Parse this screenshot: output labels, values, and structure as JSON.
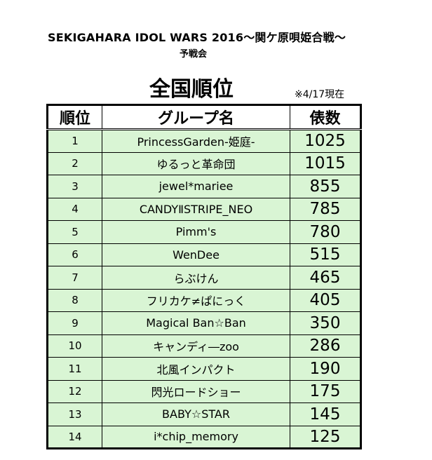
{
  "header": {
    "title": "SEKIGAHARA IDOL WARS 2016～関ケ原唄姫合戦～",
    "subtitle": "予戦会",
    "heading": "全国順位",
    "date_note": "※4/17現在"
  },
  "table": {
    "columns": [
      "順位",
      "グループ名",
      "俵数"
    ],
    "rows": [
      {
        "rank": "1",
        "group": "PrincessGarden-姫庭-",
        "votes": "1025"
      },
      {
        "rank": "2",
        "group": "ゆるっと革命団",
        "votes": "1015"
      },
      {
        "rank": "3",
        "group": "jewel*mariee",
        "votes": "855"
      },
      {
        "rank": "4",
        "group": "CANDYⅡSTRIPE_NEO",
        "votes": "785"
      },
      {
        "rank": "5",
        "group": "Pimm's",
        "votes": "780"
      },
      {
        "rank": "6",
        "group": "WenDee",
        "votes": "515"
      },
      {
        "rank": "7",
        "group": "らぶけん",
        "votes": "465"
      },
      {
        "rank": "8",
        "group": "フリカケ≠ぱにっく",
        "votes": "405"
      },
      {
        "rank": "9",
        "group": "Magical Ban☆Ban",
        "votes": "350"
      },
      {
        "rank": "10",
        "group": "キャンディ―zoo",
        "votes": "286"
      },
      {
        "rank": "11",
        "group": "北風インパクト",
        "votes": "190"
      },
      {
        "rank": "12",
        "group": "閃光ロードショー",
        "votes": "175"
      },
      {
        "rank": "13",
        "group": "BABY☆STAR",
        "votes": "145"
      },
      {
        "rank": "14",
        "group": "i*chip_memory",
        "votes": "125"
      }
    ],
    "row_color": "#d9f5d4",
    "header_color": "#ffffff"
  }
}
